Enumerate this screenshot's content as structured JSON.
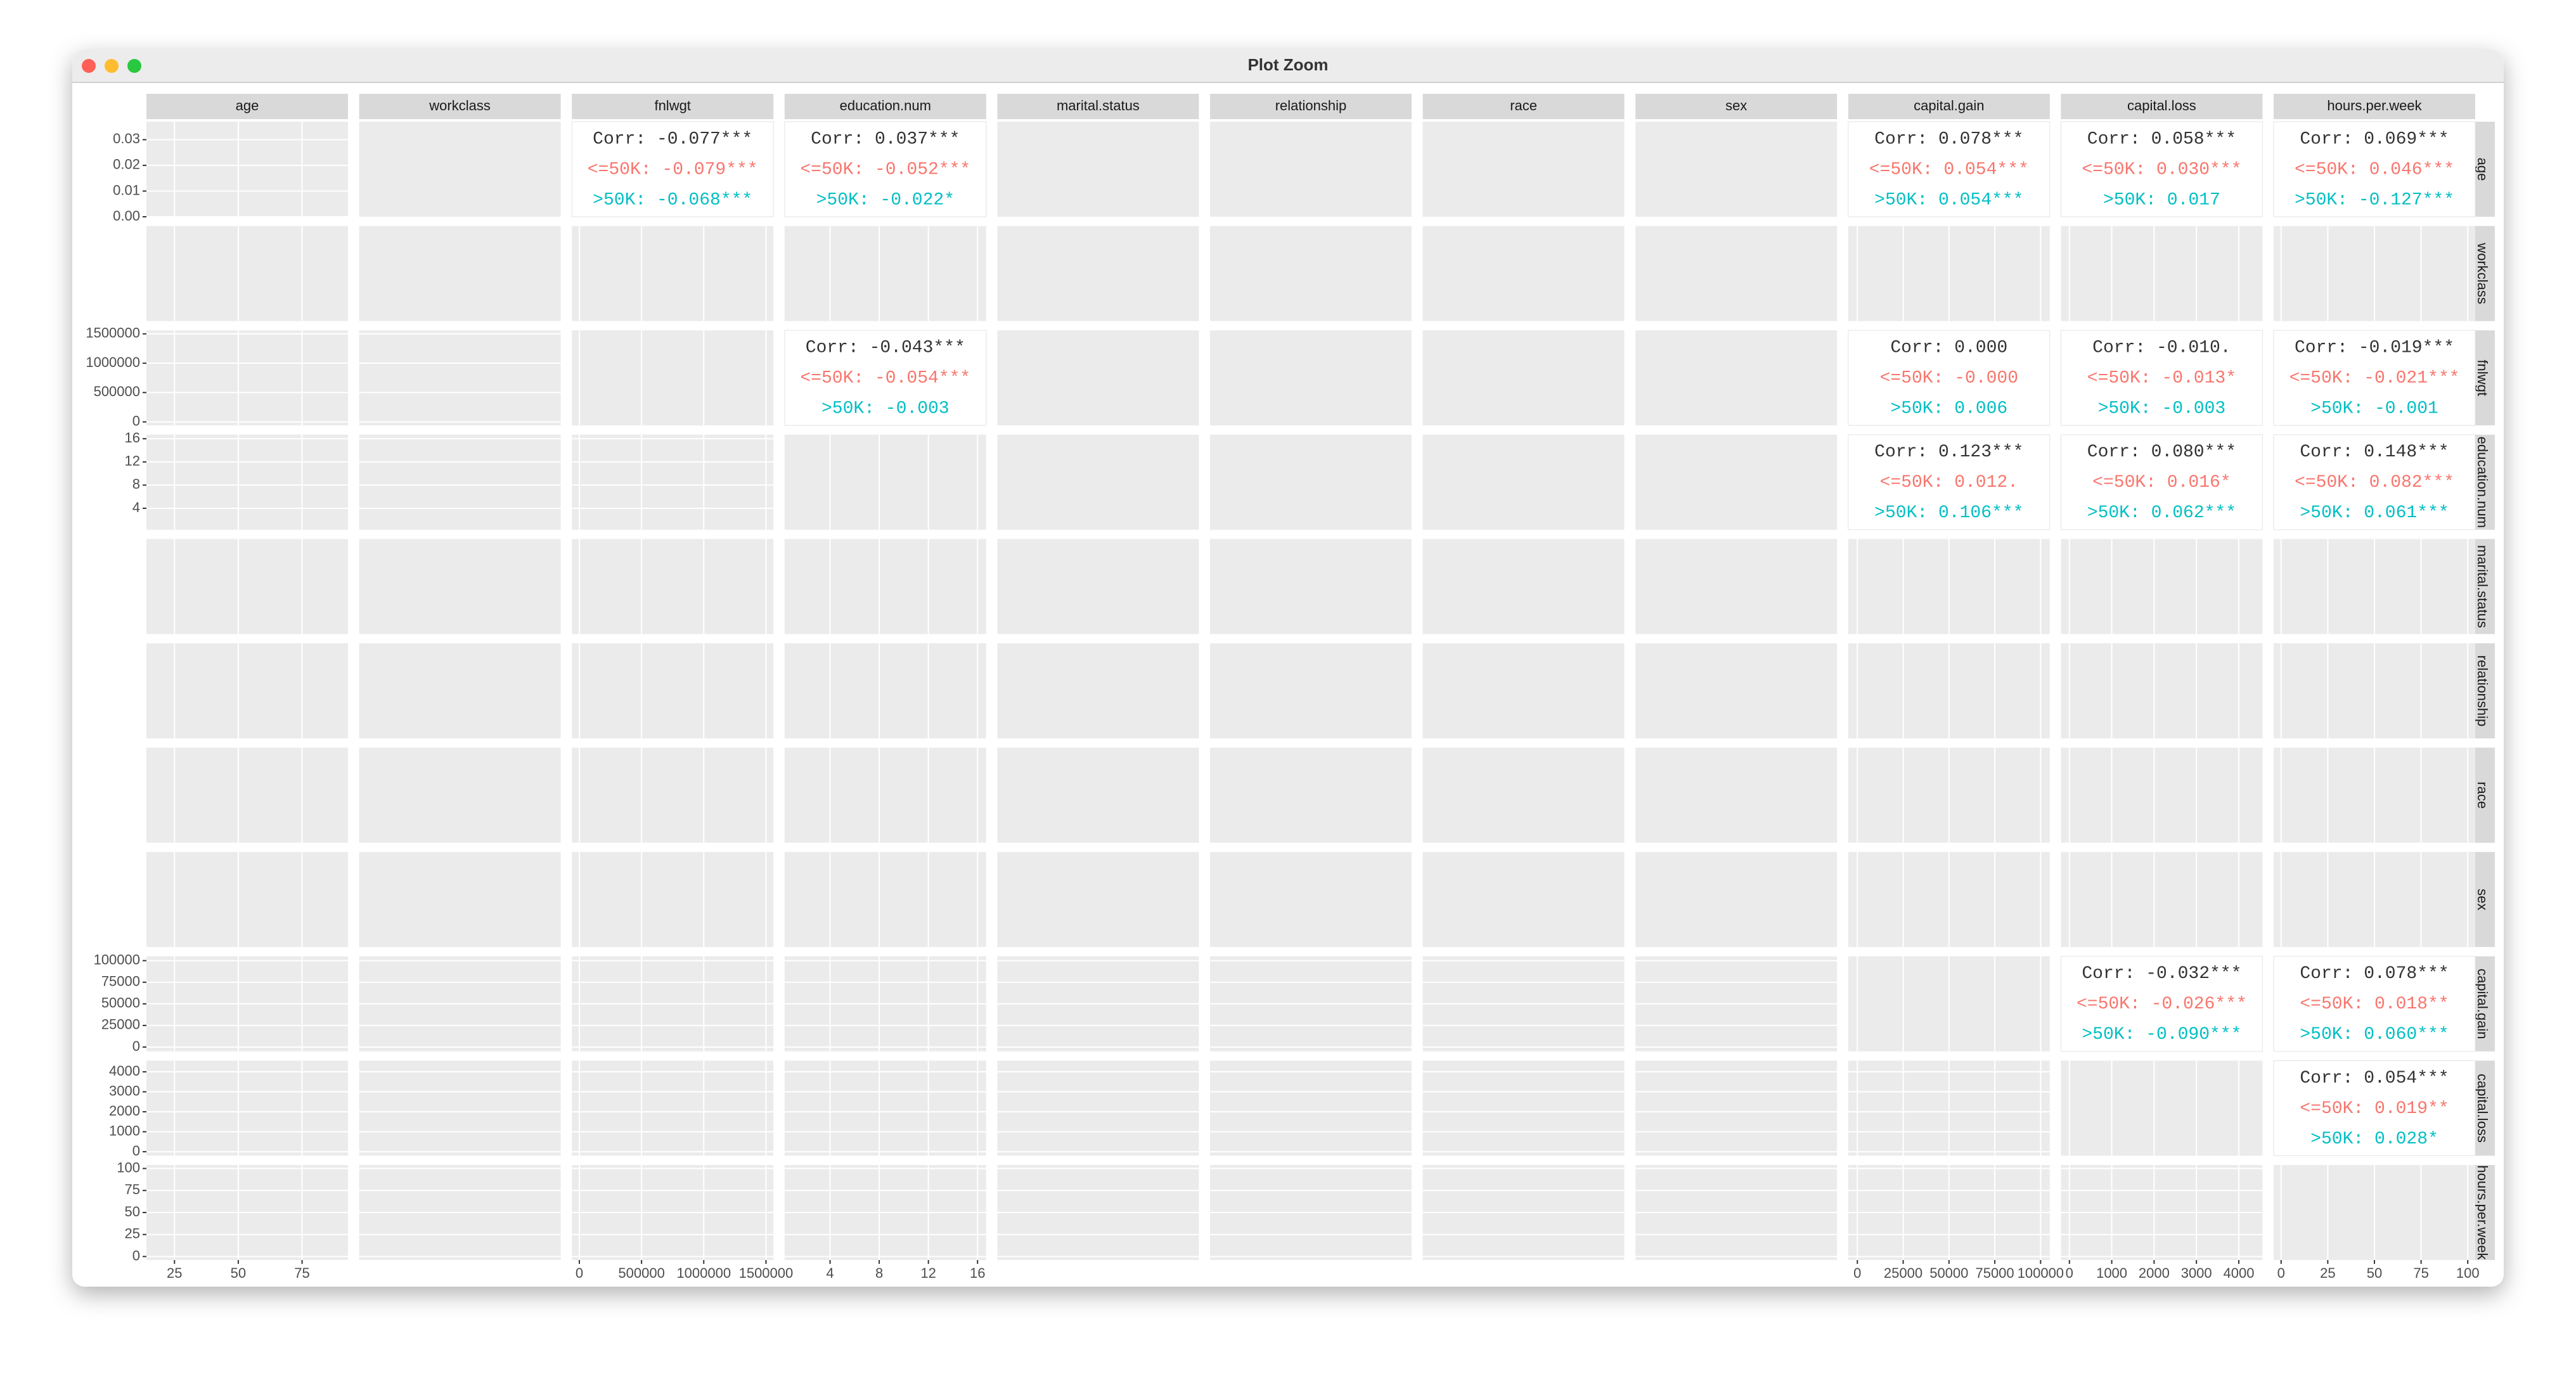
{
  "window": {
    "title": "Plot Zoom"
  },
  "chart_data": {
    "type": "pairs",
    "variables": [
      {
        "name": "age",
        "lim": [
          14,
          93
        ],
        "ticks": [
          25,
          50,
          75
        ],
        "density_lim": [
          0,
          0.037
        ],
        "density_ticks": [
          {
            "value": 0,
            "label": "0.00"
          },
          {
            "value": 0.01,
            "label": "0.01"
          },
          {
            "value": 0.02,
            "label": "0.02"
          },
          {
            "value": 0.03,
            "label": "0.03"
          }
        ]
      },
      {
        "name": "workclass"
      },
      {
        "name": "fnlwgt",
        "lim": [
          -60000,
          1560000
        ],
        "ticks": [
          0,
          500000,
          1000000,
          1500000
        ]
      },
      {
        "name": "education.num",
        "lim": [
          0.3,
          16.7
        ],
        "ticks": [
          4,
          8,
          12,
          16
        ]
      },
      {
        "name": "marital.status"
      },
      {
        "name": "relationship"
      },
      {
        "name": "race"
      },
      {
        "name": "sex"
      },
      {
        "name": "capital.gain",
        "lim": [
          -5000,
          105000
        ],
        "ticks": [
          0,
          25000,
          50000,
          75000,
          100000
        ]
      },
      {
        "name": "capital.loss",
        "lim": [
          -200,
          4560
        ],
        "ticks": [
          0,
          1000,
          2000,
          3000,
          4000
        ]
      },
      {
        "name": "hours.per.week",
        "lim": [
          -4,
          104
        ],
        "ticks": [
          0,
          25,
          50,
          75,
          100
        ]
      }
    ],
    "text_colors": [
      "#333333",
      "#F8766D",
      "#00BFC4"
    ],
    "correlations": [
      [
        null,
        null,
        [
          "Corr: -0.077***",
          "<=50K: -0.079***",
          ">50K: -0.068***"
        ],
        [
          "Corr: 0.037***",
          "<=50K: -0.052***",
          ">50K: -0.022*"
        ],
        null,
        null,
        null,
        null,
        [
          "Corr: 0.078***",
          "<=50K: 0.054***",
          ">50K: 0.054***"
        ],
        [
          "Corr: 0.058***",
          "<=50K: 0.030***",
          ">50K: 0.017"
        ],
        [
          "Corr: 0.069***",
          "<=50K: 0.046***",
          ">50K: -0.127***"
        ]
      ],
      [
        null,
        null,
        null,
        null,
        null,
        null,
        null,
        null,
        null,
        null,
        null
      ],
      [
        null,
        null,
        null,
        [
          "Corr: -0.043***",
          "<=50K: -0.054***",
          ">50K: -0.003"
        ],
        null,
        null,
        null,
        null,
        [
          "Corr: 0.000",
          "<=50K: -0.000",
          ">50K: 0.006"
        ],
        [
          "Corr: -0.010.",
          "<=50K: -0.013*",
          ">50K: -0.003"
        ],
        [
          "Corr: -0.019***",
          "<=50K: -0.021***",
          ">50K: -0.001"
        ]
      ],
      [
        null,
        null,
        null,
        null,
        null,
        null,
        null,
        null,
        [
          "Corr: 0.123***",
          "<=50K: 0.012.",
          ">50K: 0.106***"
        ],
        [
          "Corr: 0.080***",
          "<=50K: 0.016*",
          ">50K: 0.062***"
        ],
        [
          "Corr: 0.148***",
          "<=50K: 0.082***",
          ">50K: 0.061***"
        ]
      ],
      [
        null,
        null,
        null,
        null,
        null,
        null,
        null,
        null,
        null,
        null,
        null
      ],
      [
        null,
        null,
        null,
        null,
        null,
        null,
        null,
        null,
        null,
        null,
        null
      ],
      [
        null,
        null,
        null,
        null,
        null,
        null,
        null,
        null,
        null,
        null,
        null
      ],
      [
        null,
        null,
        null,
        null,
        null,
        null,
        null,
        null,
        null,
        null,
        null
      ],
      [
        null,
        null,
        null,
        null,
        null,
        null,
        null,
        null,
        null,
        [
          "Corr: -0.032***",
          "<=50K: -0.026***",
          ">50K: -0.090***"
        ],
        [
          "Corr: 0.078***",
          "<=50K: 0.018**",
          ">50K: 0.060***"
        ]
      ],
      [
        null,
        null,
        null,
        null,
        null,
        null,
        null,
        null,
        null,
        null,
        [
          "Corr: 0.054***",
          "<=50K: 0.019**",
          ">50K: 0.028*"
        ]
      ],
      [
        null,
        null,
        null,
        null,
        null,
        null,
        null,
        null,
        null,
        null,
        null
      ]
    ]
  }
}
